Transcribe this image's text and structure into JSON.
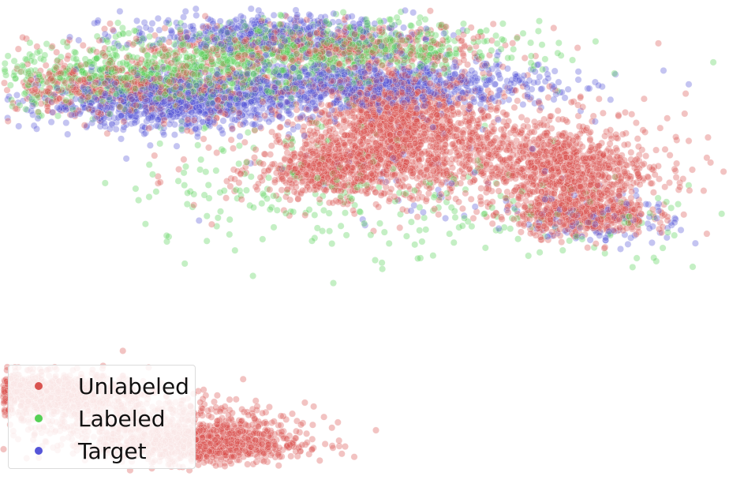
{
  "chart_data": {
    "type": "scatter",
    "title": "",
    "xlabel": "",
    "ylabel": "",
    "axes_visible": false,
    "grid": false,
    "legend_placement": "lower-left",
    "point_opacity": 0.35,
    "series": [
      {
        "name": "Unlabeled",
        "color": "#d9534f",
        "clusters": [
          {
            "cx": 0.53,
            "cy": 0.66,
            "sx": 0.065,
            "sy": 0.1,
            "n": 1100
          },
          {
            "cx": 0.43,
            "cy": 0.48,
            "sx": 0.06,
            "sy": 0.05,
            "n": 500
          },
          {
            "cx": 0.79,
            "cy": 0.48,
            "sx": 0.065,
            "sy": 0.075,
            "n": 750
          },
          {
            "cx": 0.82,
            "cy": 0.32,
            "sx": 0.05,
            "sy": 0.04,
            "n": 500
          },
          {
            "cx": 0.6,
            "cy": 0.55,
            "sx": 0.16,
            "sy": 0.1,
            "n": 900
          },
          {
            "cx": 0.12,
            "cy": 0.78,
            "sx": 0.12,
            "sy": 0.05,
            "n": 600
          },
          {
            "cx": 0.4,
            "cy": 0.93,
            "sx": 0.15,
            "sy": 0.04,
            "n": 500
          },
          {
            "cx": -0.03,
            "cy": -0.33,
            "sx": 0.07,
            "sy": 0.035,
            "n": 1100
          },
          {
            "cx": 0.22,
            "cy": -0.52,
            "sx": 0.08,
            "sy": 0.035,
            "n": 1000
          },
          {
            "cx": 0.1,
            "cy": -0.42,
            "sx": 0.12,
            "sy": 0.05,
            "n": 600
          }
        ]
      },
      {
        "name": "Labeled",
        "color": "#55d055",
        "clusters": [
          {
            "cx": 0.15,
            "cy": 0.82,
            "sx": 0.13,
            "sy": 0.06,
            "n": 700
          },
          {
            "cx": 0.42,
            "cy": 0.92,
            "sx": 0.14,
            "sy": 0.05,
            "n": 700
          },
          {
            "cx": 0.4,
            "cy": 0.42,
            "sx": 0.15,
            "sy": 0.12,
            "n": 180
          },
          {
            "cx": 0.75,
            "cy": 0.3,
            "sx": 0.15,
            "sy": 0.08,
            "n": 100
          }
        ]
      },
      {
        "name": "Target",
        "color": "#5555d8",
        "clusters": [
          {
            "cx": 0.18,
            "cy": 0.72,
            "sx": 0.1,
            "sy": 0.045,
            "n": 900
          },
          {
            "cx": 0.48,
            "cy": 0.79,
            "sx": 0.14,
            "sy": 0.045,
            "n": 1000
          },
          {
            "cx": 0.33,
            "cy": 0.98,
            "sx": 0.11,
            "sy": 0.035,
            "n": 450
          },
          {
            "cx": 0.85,
            "cy": 0.3,
            "sx": 0.06,
            "sy": 0.05,
            "n": 120
          },
          {
            "cx": 0.55,
            "cy": 0.5,
            "sx": 0.15,
            "sy": 0.12,
            "n": 60
          }
        ]
      }
    ],
    "xlim": [
      -0.05,
      1.0
    ],
    "ylim": [
      -0.6,
      1.05
    ]
  },
  "legend": {
    "items": [
      {
        "label": "Unlabeled",
        "color": "#d9534f"
      },
      {
        "label": "Labeled",
        "color": "#55d055"
      },
      {
        "label": "Target",
        "color": "#5555d8"
      }
    ]
  }
}
